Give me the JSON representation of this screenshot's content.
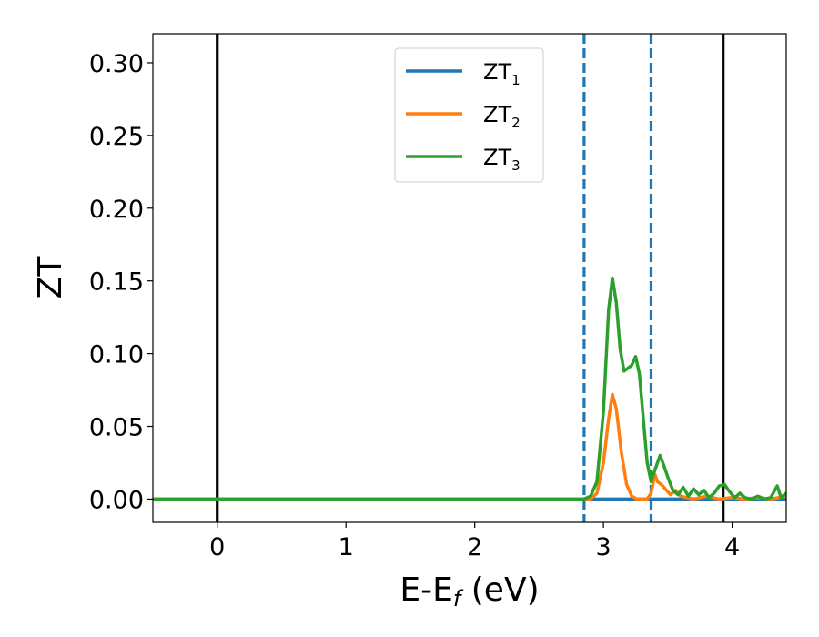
{
  "chart_data": {
    "type": "line",
    "xlabel": "E-E",
    "xlabel_sub": "f",
    "xlabel_unit": " (eV)",
    "ylabel": "ZT",
    "xlim": [
      -0.5,
      4.42
    ],
    "ylim": [
      -0.016,
      0.32
    ],
    "xticks": [
      0,
      1,
      2,
      3,
      4
    ],
    "xtick_labels": [
      "0",
      "1",
      "2",
      "3",
      "4"
    ],
    "yticks": [
      0.0,
      0.05,
      0.1,
      0.15,
      0.2,
      0.25,
      0.3
    ],
    "ytick_labels": [
      "0.00",
      "0.05",
      "0.10",
      "0.15",
      "0.20",
      "0.25",
      "0.30"
    ],
    "grid": false,
    "legend_position": "top-center",
    "series": [
      {
        "name": "ZT",
        "sub": "1",
        "color": "#1f77b4",
        "x": [
          -0.5,
          4.42
        ],
        "y": [
          0.0,
          0.0
        ]
      },
      {
        "name": "ZT",
        "sub": "2",
        "color": "#ff7f0e",
        "x": [
          -0.5,
          2.9,
          2.95,
          3.0,
          3.04,
          3.07,
          3.1,
          3.14,
          3.18,
          3.22,
          3.26,
          3.3,
          3.34,
          3.37,
          3.4,
          3.42,
          3.45,
          3.48,
          3.52,
          3.56,
          3.6,
          3.7,
          3.8,
          3.9,
          4.0,
          4.1,
          4.2,
          4.3,
          4.42
        ],
        "y": [
          0.0,
          0.0,
          0.004,
          0.025,
          0.055,
          0.072,
          0.062,
          0.032,
          0.01,
          0.002,
          0.0,
          0.0,
          0.0,
          0.004,
          0.017,
          0.012,
          0.01,
          0.007,
          0.003,
          0.006,
          0.002,
          0.0,
          0.002,
          0.0,
          0.001,
          0.0,
          0.001,
          0.0,
          0.002
        ]
      },
      {
        "name": "ZT",
        "sub": "3",
        "color": "#2ca02c",
        "x": [
          -0.5,
          2.85,
          2.9,
          2.95,
          3.0,
          3.04,
          3.07,
          3.1,
          3.13,
          3.16,
          3.19,
          3.22,
          3.25,
          3.28,
          3.31,
          3.34,
          3.37,
          3.4,
          3.44,
          3.47,
          3.5,
          3.54,
          3.58,
          3.62,
          3.66,
          3.7,
          3.74,
          3.78,
          3.82,
          3.86,
          3.9,
          3.94,
          3.98,
          4.02,
          4.06,
          4.1,
          4.15,
          4.2,
          4.25,
          4.3,
          4.35,
          4.38,
          4.42
        ],
        "y": [
          0.0,
          0.0,
          0.002,
          0.012,
          0.06,
          0.13,
          0.152,
          0.135,
          0.103,
          0.088,
          0.09,
          0.092,
          0.098,
          0.086,
          0.055,
          0.025,
          0.012,
          0.02,
          0.03,
          0.023,
          0.015,
          0.006,
          0.003,
          0.008,
          0.002,
          0.007,
          0.003,
          0.006,
          0.001,
          0.004,
          0.009,
          0.01,
          0.005,
          0.001,
          0.004,
          0.001,
          0.0,
          0.002,
          0.0,
          0.001,
          0.009,
          0.001,
          0.004
        ]
      }
    ],
    "vertical_lines": [
      {
        "x": 0.0,
        "color": "#000000",
        "style": "solid"
      },
      {
        "x": 3.93,
        "color": "#000000",
        "style": "solid"
      },
      {
        "x": 2.85,
        "color": "#1f77b4",
        "style": "dashed"
      },
      {
        "x": 3.37,
        "color": "#1f77b4",
        "style": "dashed"
      }
    ]
  }
}
